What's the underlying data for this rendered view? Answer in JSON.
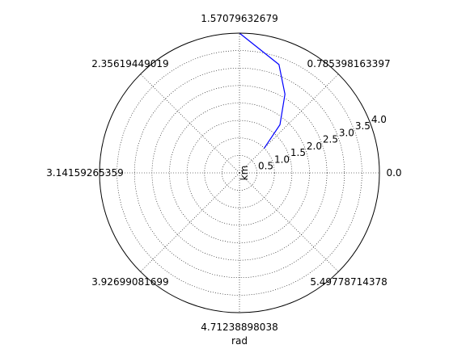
{
  "chart_data": {
    "type": "line",
    "projection": "polar",
    "xlabel": "rad",
    "ylabel": "km",
    "angle_tick_labels": [
      "0.0",
      "0.785398163397",
      "1.57079632679",
      "2.35619449019",
      "3.14159265359",
      "3.92699081699",
      "4.71238898038",
      "5.49778714378"
    ],
    "radial_tick_labels": [
      "0.5",
      "1.0",
      "1.5",
      "2.0",
      "2.5",
      "3.0",
      "3.5",
      "4.0"
    ],
    "rlim": [
      0,
      4.0
    ],
    "grid": true,
    "series": [
      {
        "color": "#0000ff",
        "theta": [
          0.785398163397,
          0.872664626,
          1.047197551,
          1.221730476,
          1.570796327
        ],
        "r": [
          1.0,
          1.8,
          2.6,
          3.3,
          4.0
        ]
      }
    ]
  }
}
